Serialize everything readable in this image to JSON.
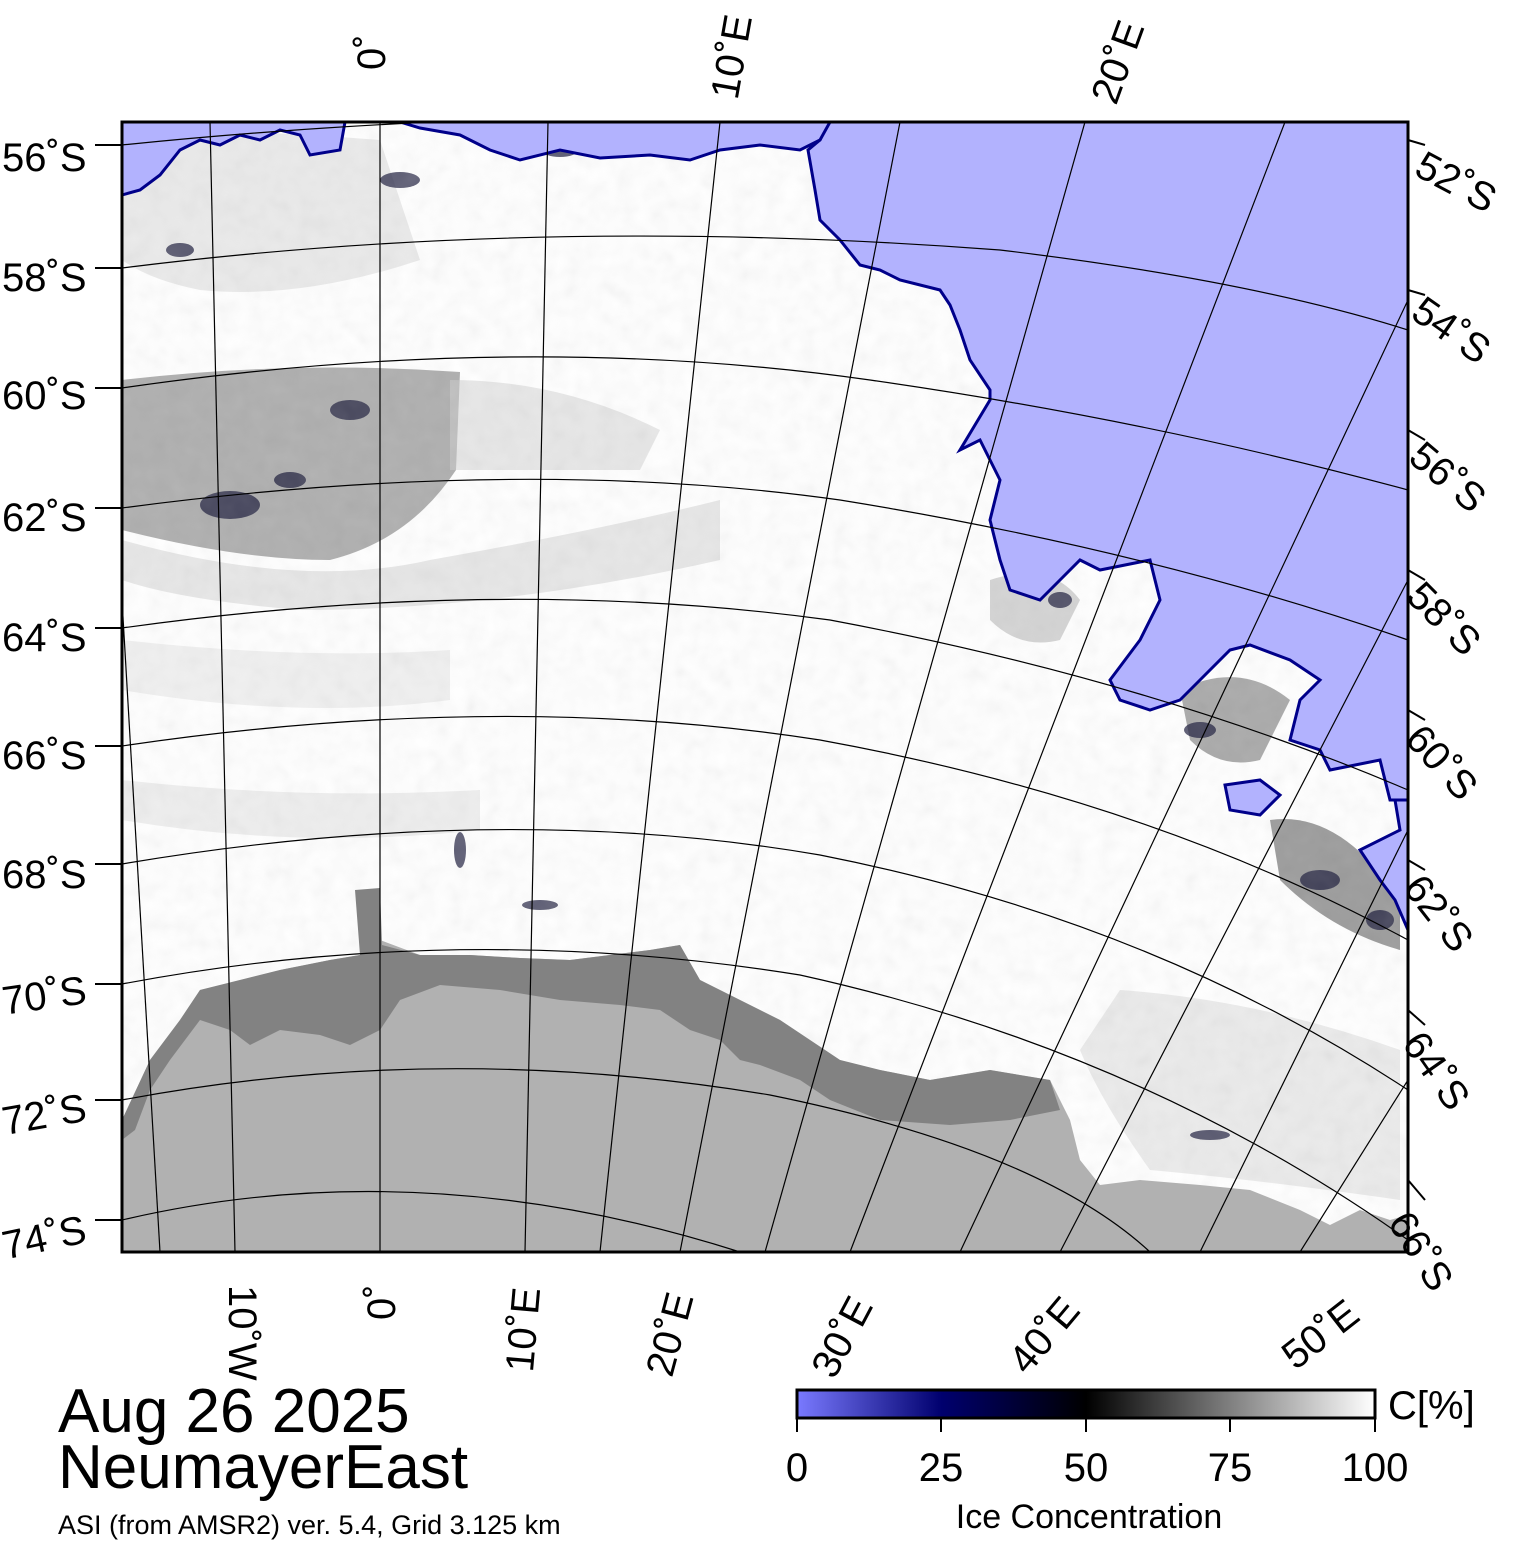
{
  "map": {
    "date": "Aug 26 2025",
    "region": "NeumayerEast",
    "source": "ASI (from AMSR2) ver. 5.4,  Grid 3.125 km",
    "colors": {
      "open_water": "#b2b2fe",
      "land": "#b1b1b1",
      "ice_shelf": "#828282",
      "full_ice": "#ffffff",
      "frame": "#000000"
    },
    "top_lon_labels": [
      "0˚",
      "10˚E",
      "20˚E"
    ],
    "bottom_lon_labels": [
      "10˚W",
      "0˚",
      "10˚E",
      "20˚E",
      "30˚E",
      "40˚E",
      "50˚E"
    ],
    "left_lat_labels": [
      "56˚S",
      "58˚S",
      "60˚S",
      "62˚S",
      "64˚S",
      "66˚S",
      "68˚S",
      "70˚S",
      "72˚S",
      "74˚S"
    ],
    "right_lat_labels": [
      "52˚S",
      "54˚S",
      "56˚S",
      "58˚S",
      "60˚S",
      "62˚S",
      "64˚S",
      "66˚S"
    ]
  },
  "colorbar": {
    "title": "Ice Concentration",
    "unit": "C[%]",
    "ticks": [
      "0",
      "25",
      "50",
      "75",
      "100"
    ],
    "stops": [
      "#7a7aff",
      "#00006e",
      "#000000",
      "#808080",
      "#ffffff"
    ]
  }
}
